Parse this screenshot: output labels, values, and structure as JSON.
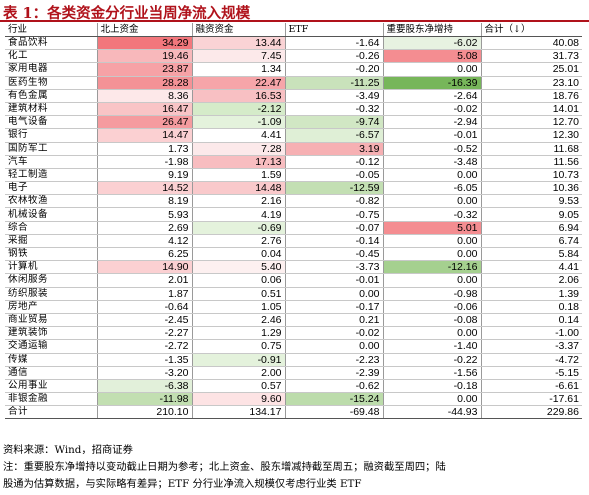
{
  "title": "表 1：各类资金分行业当周净流入规模",
  "headers": [
    "行业",
    "北上资金",
    "融资资金",
    "ETF",
    "重要股东净增持",
    "合计（↓）"
  ],
  "rows": [
    {
      "name": "食品饮料",
      "values": [
        34.29,
        13.44,
        -1.64,
        -6.02,
        40.08
      ],
      "fills": [
        "#f2777c",
        "#fad3d5",
        "",
        "#e7f2e1",
        ""
      ]
    },
    {
      "name": "化工",
      "values": [
        19.46,
        7.45,
        -0.26,
        5.08,
        31.73
      ],
      "fills": [
        "#f8b8bb",
        "#fce9ea",
        "",
        "#f48d91",
        ""
      ]
    },
    {
      "name": "家用电器",
      "values": [
        23.87,
        1.34,
        -0.2,
        0.0,
        25.01
      ],
      "fills": [
        "#f6a2a6",
        "",
        "",
        "",
        ""
      ]
    },
    {
      "name": "医药生物",
      "values": [
        28.28,
        22.47,
        -11.25,
        -16.39,
        23.1
      ],
      "fills": [
        "#f49296",
        "#f6a5a9",
        "#c9e2bb",
        "#77b65a",
        ""
      ]
    },
    {
      "name": "有色金属",
      "values": [
        8.36,
        16.53,
        -3.49,
        -2.64,
        18.76
      ],
      "fills": [
        "#fde8e9",
        "#f8c0c3",
        "",
        "",
        ""
      ]
    },
    {
      "name": "建筑材料",
      "values": [
        16.47,
        -2.12,
        -0.32,
        -0.02,
        14.01
      ],
      "fills": [
        "#f9c4c6",
        "#d5ebc9",
        "",
        "",
        ""
      ]
    },
    {
      "name": "电气设备",
      "values": [
        26.47,
        -1.09,
        -9.74,
        -2.94,
        12.7
      ],
      "fills": [
        "#f59b9f",
        "#e4f2dc",
        "#d1e7c4",
        "",
        ""
      ]
    },
    {
      "name": "银行",
      "values": [
        14.47,
        4.41,
        -6.57,
        -0.01,
        12.3
      ],
      "fills": [
        "#fbd0d2",
        "",
        "#dfefd6",
        "",
        ""
      ]
    },
    {
      "name": "国防军工",
      "values": [
        1.73,
        7.28,
        3.19,
        -0.52,
        11.68
      ],
      "fills": [
        "",
        "#fce9ea",
        "#f6b0b3",
        "",
        ""
      ]
    },
    {
      "name": "汽车",
      "values": [
        -1.98,
        17.13,
        -0.12,
        -3.48,
        11.56
      ],
      "fills": [
        "",
        "#f8bdc0",
        "",
        "",
        ""
      ]
    },
    {
      "name": "轻工制造",
      "values": [
        9.19,
        1.59,
        -0.05,
        0.0,
        10.73
      ],
      "fills": [
        "",
        "",
        "",
        "",
        ""
      ]
    },
    {
      "name": "电子",
      "values": [
        14.52,
        14.48,
        -12.59,
        -6.05,
        10.36
      ],
      "fills": [
        "#fbd0d2",
        "#f9c9cb",
        "#c3dfb3",
        "",
        ""
      ]
    },
    {
      "name": "农林牧渔",
      "values": [
        8.19,
        2.16,
        -0.82,
        0.0,
        9.53
      ],
      "fills": [
        "",
        "",
        "",
        "",
        ""
      ]
    },
    {
      "name": "机械设备",
      "values": [
        5.93,
        4.19,
        -0.75,
        -0.32,
        9.05
      ],
      "fills": [
        "",
        "",
        "",
        "",
        ""
      ]
    },
    {
      "name": "综合",
      "values": [
        2.69,
        -0.69,
        -0.07,
        5.01,
        6.94
      ],
      "fills": [
        "",
        "#e4f2dc",
        "",
        "#f48d91",
        ""
      ]
    },
    {
      "name": "采掘",
      "values": [
        4.12,
        2.76,
        -0.14,
        0.0,
        6.74
      ],
      "fills": [
        "",
        "",
        "",
        "",
        ""
      ]
    },
    {
      "name": "钢铁",
      "values": [
        6.25,
        0.04,
        -0.45,
        0.0,
        5.84
      ],
      "fills": [
        "",
        "",
        "",
        "",
        ""
      ]
    },
    {
      "name": "计算机",
      "values": [
        14.9,
        5.4,
        -3.73,
        -12.16,
        4.41
      ],
      "fills": [
        "#fbd0d2",
        "#fdf0f0",
        "",
        "#a5d08f",
        ""
      ]
    },
    {
      "name": "休闲服务",
      "values": [
        2.01,
        0.06,
        -0.01,
        0.0,
        2.06
      ],
      "fills": [
        "",
        "",
        "",
        "",
        ""
      ]
    },
    {
      "name": "纺织服装",
      "values": [
        1.87,
        0.51,
        0.0,
        -0.98,
        1.39
      ],
      "fills": [
        "",
        "",
        "",
        "",
        ""
      ]
    },
    {
      "name": "房地产",
      "values": [
        -0.64,
        1.05,
        -0.17,
        -0.06,
        0.18
      ],
      "fills": [
        "",
        "",
        "",
        "",
        ""
      ]
    },
    {
      "name": "商业贸易",
      "values": [
        -2.45,
        2.46,
        0.21,
        -0.08,
        0.14
      ],
      "fills": [
        "",
        "",
        "",
        "",
        ""
      ]
    },
    {
      "name": "建筑装饰",
      "values": [
        -2.27,
        1.29,
        -0.02,
        0.0,
        -1.0
      ],
      "fills": [
        "",
        "",
        "",
        "",
        ""
      ]
    },
    {
      "name": "交通运输",
      "values": [
        -2.72,
        0.75,
        0.0,
        -1.4,
        -3.37
      ],
      "fills": [
        "",
        "",
        "",
        "",
        ""
      ]
    },
    {
      "name": "传媒",
      "values": [
        -1.35,
        -0.91,
        -2.23,
        -0.22,
        -4.72
      ],
      "fills": [
        "",
        "#e4f2dc",
        "",
        "",
        ""
      ]
    },
    {
      "name": "通信",
      "values": [
        -3.2,
        2.0,
        -2.39,
        -1.56,
        -5.15
      ],
      "fills": [
        "",
        "",
        "",
        "",
        ""
      ]
    },
    {
      "name": "公用事业",
      "values": [
        -6.38,
        0.57,
        -0.62,
        -0.18,
        -6.61
      ],
      "fills": [
        "#e2f0da",
        "",
        "",
        "",
        ""
      ]
    },
    {
      "name": "非银金融",
      "values": [
        -11.98,
        9.6,
        -15.24,
        0.0,
        -17.61
      ],
      "fills": [
        "#c2dfb1",
        "#fde3e4",
        "#bcdcab",
        "",
        ""
      ]
    }
  ],
  "total": {
    "name": "合计",
    "values": [
      210.1,
      134.17,
      -69.48,
      -44.93,
      229.86
    ]
  },
  "footer": {
    "source": "资料来源：Wind，招商证券",
    "note_line1": "注：重要股东净增持以变动截止日期为参考；北上资金、股东增减持截至周五；融资截至周四；陆",
    "note_line2": "股通为估算数据，与实际略有差异；ETF 分行业净流入规模仅考虑行业类 ETF"
  }
}
